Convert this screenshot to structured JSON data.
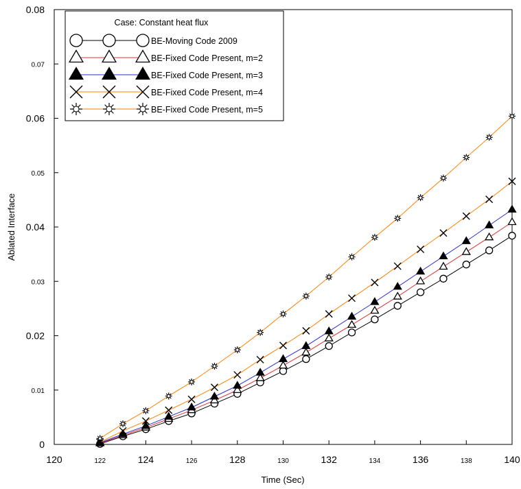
{
  "chart_data": {
    "type": "line",
    "title": "",
    "xlabel": "Time (Sec)",
    "ylabel": "Ablated Interface",
    "xlim": [
      120,
      140
    ],
    "ylim": [
      0,
      0.08
    ],
    "x_ticks": [
      {
        "value": 120,
        "label": "120",
        "size": "major"
      },
      {
        "value": 122,
        "label": "122",
        "size": "minor"
      },
      {
        "value": 124,
        "label": "124",
        "size": "major"
      },
      {
        "value": 126,
        "label": "126",
        "size": "minor"
      },
      {
        "value": 128,
        "label": "128",
        "size": "major"
      },
      {
        "value": 130,
        "label": "130",
        "size": "minor"
      },
      {
        "value": 132,
        "label": "132",
        "size": "major"
      },
      {
        "value": 134,
        "label": "134",
        "size": "minor"
      },
      {
        "value": 136,
        "label": "136",
        "size": "major"
      },
      {
        "value": 138,
        "label": "138",
        "size": "minor"
      },
      {
        "value": 140,
        "label": "140",
        "size": "major"
      }
    ],
    "y_ticks": [
      {
        "value": 0,
        "label": "0",
        "size": "major"
      },
      {
        "value": 0.01,
        "label": "0.01",
        "size": "minor"
      },
      {
        "value": 0.02,
        "label": "0.02",
        "size": "major"
      },
      {
        "value": 0.03,
        "label": "0.03",
        "size": "minor"
      },
      {
        "value": 0.04,
        "label": "0.04",
        "size": "major"
      },
      {
        "value": 0.05,
        "label": "0.05",
        "size": "minor"
      },
      {
        "value": 0.06,
        "label": "0.06",
        "size": "major"
      },
      {
        "value": 0.07,
        "label": "0.07",
        "size": "minor"
      },
      {
        "value": 0.08,
        "label": "0.08",
        "size": "major"
      }
    ],
    "grid": false,
    "legend": {
      "title": "Case: Constant heat flux",
      "placement": "top-left"
    },
    "x": [
      122,
      123,
      124,
      125,
      126,
      127,
      128,
      129,
      130,
      131,
      132,
      133,
      134,
      135,
      136,
      137,
      138,
      139,
      140
    ],
    "series": [
      {
        "name": "BE-Moving Code 2009",
        "marker": "circle",
        "color": "#000000",
        "values": [
          0.0001,
          0.0015,
          0.0028,
          0.0043,
          0.0057,
          0.0075,
          0.0093,
          0.0114,
          0.0135,
          0.0157,
          0.0181,
          0.0206,
          0.023,
          0.0255,
          0.028,
          0.0305,
          0.0331,
          0.0357,
          0.0384
        ]
      },
      {
        "name": "BE-Fixed Code Present, m=2",
        "marker": "triangle-open",
        "color": "#e03030",
        "values": [
          0.0002,
          0.0017,
          0.0031,
          0.0047,
          0.0063,
          0.0081,
          0.01,
          0.0122,
          0.0145,
          0.0169,
          0.0195,
          0.022,
          0.0246,
          0.0272,
          0.03,
          0.0327,
          0.0354,
          0.0381,
          0.0409
        ]
      },
      {
        "name": "BE-Fixed Code Present, m=3",
        "marker": "triangle-filled",
        "color": "#2a2ad0",
        "values": [
          0.0003,
          0.0019,
          0.0034,
          0.0051,
          0.0068,
          0.0088,
          0.0108,
          0.0132,
          0.0157,
          0.0181,
          0.0208,
          0.0235,
          0.0262,
          0.029,
          0.0318,
          0.0346,
          0.0374,
          0.0403,
          0.0432
        ]
      },
      {
        "name": "BE-Fixed Code Present, m=4",
        "marker": "x",
        "color": "#ff8000",
        "values": [
          0.0004,
          0.0025,
          0.0043,
          0.0063,
          0.0083,
          0.0105,
          0.0128,
          0.0156,
          0.0182,
          0.0209,
          0.024,
          0.0269,
          0.0298,
          0.0328,
          0.0359,
          0.0389,
          0.042,
          0.0451,
          0.0484
        ]
      },
      {
        "name": "BE-Fixed Code Present, m=5",
        "marker": "star",
        "color": "#ff8000",
        "values": [
          0.0011,
          0.0038,
          0.0062,
          0.0089,
          0.0115,
          0.0144,
          0.0174,
          0.0206,
          0.024,
          0.0273,
          0.0308,
          0.0345,
          0.0381,
          0.0416,
          0.0454,
          0.049,
          0.0528,
          0.0565,
          0.0604
        ]
      }
    ]
  }
}
